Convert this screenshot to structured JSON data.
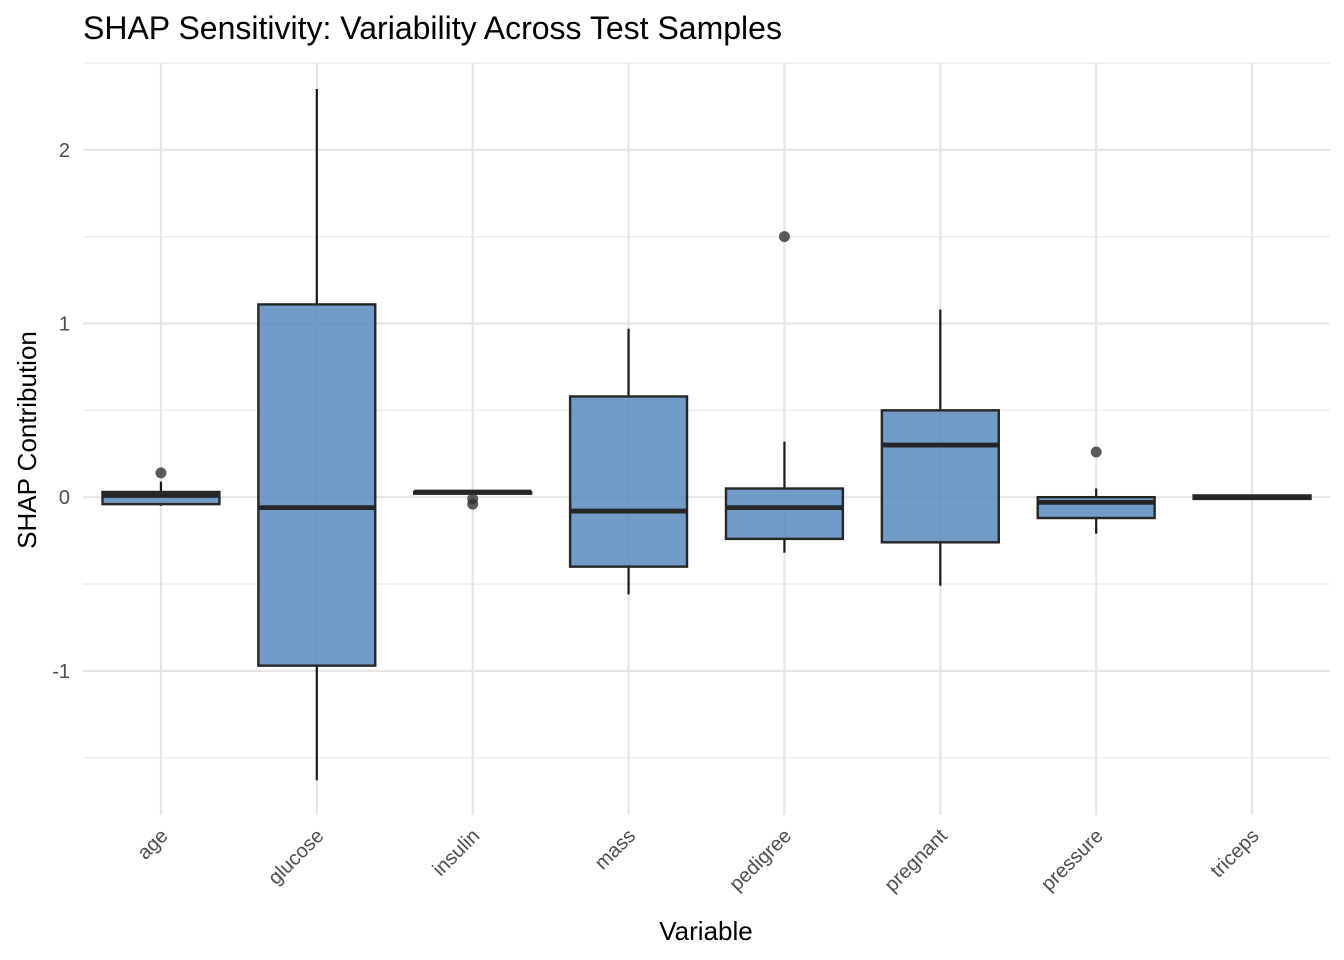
{
  "chart_data": {
    "type": "boxplot",
    "title": "SHAP Sensitivity: Variability Across Test Samples",
    "xlabel": "Variable",
    "ylabel": "SHAP Contribution",
    "ylim": [
      -1.83,
      2.5
    ],
    "yticks": [
      -1,
      0,
      1,
      2
    ],
    "ytick_labels": [
      "-1",
      "0",
      "1",
      "2"
    ],
    "grid": true,
    "legend": "none",
    "box_fill_color": "#5b89bd",
    "categories": [
      "age",
      "glucose",
      "insulin",
      "mass",
      "pedigree",
      "pregnant",
      "pressure",
      "triceps"
    ],
    "boxes": [
      {
        "variable": "age",
        "whisker_low": -0.05,
        "q1": -0.04,
        "median": 0.01,
        "q3": 0.03,
        "whisker_high": 0.09,
        "outliers": [
          0.14
        ]
      },
      {
        "variable": "glucose",
        "whisker_low": -1.63,
        "q1": -0.97,
        "median": -0.06,
        "q3": 1.11,
        "whisker_high": 2.35,
        "outliers": []
      },
      {
        "variable": "insulin",
        "whisker_low": 0.02,
        "q1": 0.02,
        "median": 0.03,
        "q3": 0.03,
        "whisker_high": 0.03,
        "outliers": [
          -0.01,
          -0.04
        ]
      },
      {
        "variable": "mass",
        "whisker_low": -0.56,
        "q1": -0.4,
        "median": -0.08,
        "q3": 0.58,
        "whisker_high": 0.97,
        "outliers": []
      },
      {
        "variable": "pedigree",
        "whisker_low": -0.32,
        "q1": -0.24,
        "median": -0.06,
        "q3": 0.05,
        "whisker_high": 0.32,
        "outliers": [
          1.5
        ]
      },
      {
        "variable": "pregnant",
        "whisker_low": -0.51,
        "q1": -0.26,
        "median": 0.3,
        "q3": 0.5,
        "whisker_high": 1.08,
        "outliers": []
      },
      {
        "variable": "pressure",
        "whisker_low": -0.21,
        "q1": -0.12,
        "median": -0.03,
        "q3": 0.0,
        "whisker_high": 0.05,
        "outliers": [
          0.26
        ]
      },
      {
        "variable": "triceps",
        "whisker_low": -0.01,
        "q1": -0.01,
        "median": 0.0,
        "q3": 0.01,
        "whisker_high": 0.01,
        "outliers": []
      }
    ]
  }
}
